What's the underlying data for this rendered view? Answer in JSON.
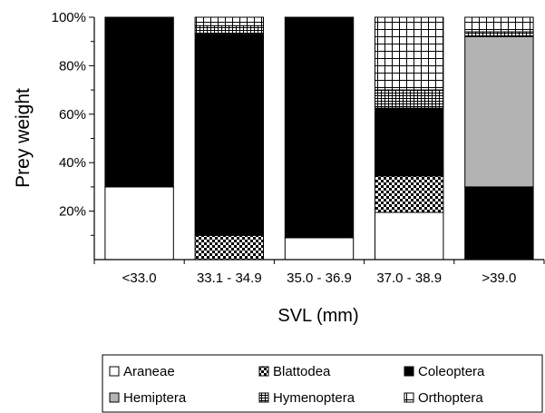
{
  "chart_data": {
    "type": "bar",
    "stacked": true,
    "normalized": true,
    "title": "",
    "xlabel": "SVL (mm)",
    "ylabel": "Prey weight",
    "ylim": [
      0,
      100
    ],
    "y_ticks": [
      "20%",
      "40%",
      "60%",
      "80%",
      "100%"
    ],
    "y_tick_values": [
      20,
      40,
      60,
      80,
      100
    ],
    "grid": false,
    "legend_position": "bottom",
    "categories": [
      "<33.0",
      "33.1 - 34.9",
      "35.0 - 36.9",
      "37.0 - 38.9",
      ">39.0"
    ],
    "series": [
      {
        "name": "Araneae",
        "pattern": "white",
        "values": [
          30,
          0,
          9,
          19.5,
          0
        ]
      },
      {
        "name": "Blattodea",
        "pattern": "checker",
        "values": [
          0,
          10,
          0,
          15,
          0
        ]
      },
      {
        "name": "Coleoptera",
        "pattern": "black",
        "values": [
          70,
          83,
          91,
          28,
          30
        ]
      },
      {
        "name": "Hemiptera",
        "pattern": "gray",
        "values": [
          0,
          0,
          0,
          0,
          62
        ]
      },
      {
        "name": "Hymenoptera",
        "pattern": "stripes",
        "values": [
          0,
          3.5,
          0,
          7.5,
          2
        ]
      },
      {
        "name": "Orthoptera",
        "pattern": "grid",
        "values": [
          0,
          3.5,
          0,
          30,
          6
        ]
      }
    ],
    "colors": {
      "black": "#000000",
      "gray": "#b3b3b3",
      "white": "#ffffff"
    }
  }
}
